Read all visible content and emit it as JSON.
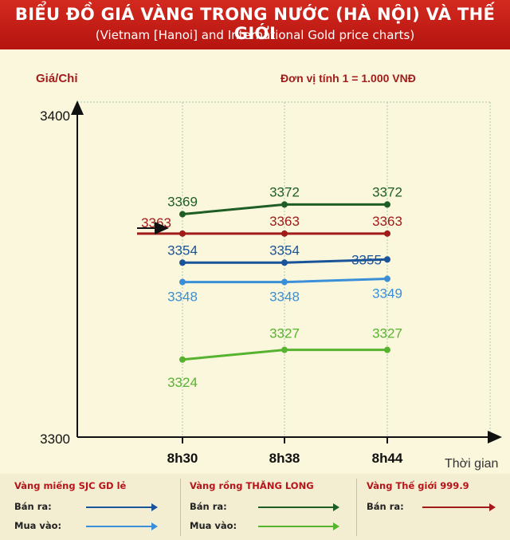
{
  "header": {
    "title": "BIỂU ĐỒ GIÁ VÀNG TRONG NƯỚC (HÀ NỘI) VÀ THẾ GIỚI",
    "subtitle": "(Vietnam [Hanoi] and International Gold price charts)"
  },
  "chart_data": {
    "type": "line",
    "ylabel": "Giá/Chỉ",
    "unit_note": "Đơn vị tính 1 = 1.000 VNĐ",
    "xlabel": "Thời gian",
    "categories": [
      "8h30",
      "8h38",
      "8h44"
    ],
    "ylim": [
      3300,
      3400
    ],
    "yticks": [
      "3400",
      "3300"
    ],
    "grid": true,
    "series": [
      {
        "name": "Vàng rồng THĂNG LONG Bán ra",
        "color": "#1e5e25",
        "values": [
          3369,
          3372,
          3372
        ],
        "labels": [
          "3369",
          "3372",
          "3372"
        ],
        "label_pos": "above"
      },
      {
        "name": "Vàng Thế giới 999.9 Bán ra",
        "color": "#a11b1b",
        "values": [
          3363,
          3363,
          3363
        ],
        "labels": [
          "3363",
          "3363",
          "3363"
        ],
        "label_pos": "above"
      },
      {
        "name": "Vàng miếng SJC GD lẻ Bán ra",
        "color": "#19539a",
        "values": [
          3354,
          3354,
          3355
        ],
        "labels": [
          "3354",
          "3354",
          "3355"
        ],
        "label_pos": "above"
      },
      {
        "name": "Vàng miếng SJC GD lẻ Mua vào",
        "color": "#3a8fd8",
        "values": [
          3348,
          3348,
          3349
        ],
        "labels": [
          "3348",
          "3348",
          "3349"
        ],
        "label_pos": "below"
      },
      {
        "name": "Vàng rồng THĂNG LONG Mua vào",
        "color": "#56b32f",
        "values": [
          3324,
          3327,
          3327
        ],
        "labels": [
          "3324",
          "3327",
          "3327"
        ],
        "label_pos": "mixed"
      }
    ]
  },
  "legend": {
    "groups": [
      {
        "title": "Vàng miếng SJC GD lẻ",
        "rows": [
          {
            "label": "Bán ra:",
            "color": "#19539a"
          },
          {
            "label": "Mua vào:",
            "color": "#3a8fd8"
          }
        ]
      },
      {
        "title": "Vàng rồng THĂNG LONG",
        "rows": [
          {
            "label": "Bán ra:",
            "color": "#1e5e25"
          },
          {
            "label": "Mua vào:",
            "color": "#56b32f"
          }
        ]
      },
      {
        "title": "Vàng Thế giới 999.9",
        "rows": [
          {
            "label": "Bán ra:",
            "color": "#a11b1b"
          }
        ]
      }
    ]
  }
}
